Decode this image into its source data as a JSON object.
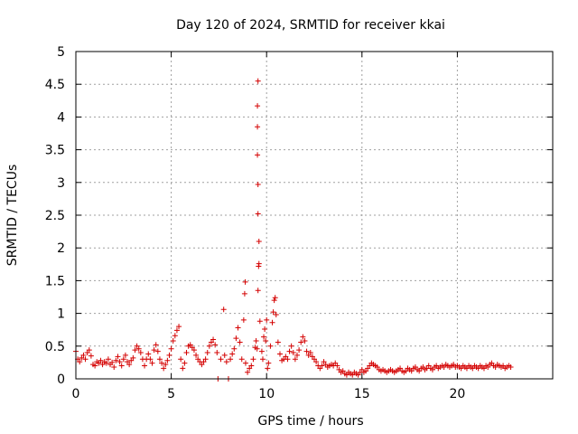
{
  "chart_data": {
    "type": "scatter",
    "title": "Day 120 of 2024, SRMTID for receiver kkai",
    "xlabel": "GPS time / hours",
    "ylabel": "SRMTID / TECUs",
    "xlim": [
      0,
      25
    ],
    "ylim": [
      0,
      5
    ],
    "xticks": [
      0,
      5,
      10,
      15,
      20
    ],
    "xtick_labels": [
      "0",
      "5",
      "10",
      "15",
      "20"
    ],
    "yticks": [
      0,
      0.5,
      1,
      1.5,
      2,
      2.5,
      3,
      3.5,
      4,
      4.5,
      5
    ],
    "ytick_labels": [
      "0",
      "0.5",
      "1",
      "1.5",
      "2",
      "2.5",
      "3",
      "3.5",
      "4",
      "4.5",
      "5"
    ],
    "grid": true,
    "marker": "plus",
    "color": "#d40000",
    "series": [
      {
        "name": "SRMTID",
        "points": [
          [
            0.0,
            0.42
          ],
          [
            0.1,
            0.3
          ],
          [
            0.2,
            0.26
          ],
          [
            0.3,
            0.32
          ],
          [
            0.4,
            0.36
          ],
          [
            0.5,
            0.3
          ],
          [
            0.6,
            0.4
          ],
          [
            0.7,
            0.44
          ],
          [
            0.8,
            0.35
          ],
          [
            0.9,
            0.22
          ],
          [
            1.0,
            0.2
          ],
          [
            1.1,
            0.26
          ],
          [
            1.2,
            0.24
          ],
          [
            1.3,
            0.28
          ],
          [
            1.4,
            0.22
          ],
          [
            1.5,
            0.26
          ],
          [
            1.6,
            0.24
          ],
          [
            1.7,
            0.3
          ],
          [
            1.8,
            0.22
          ],
          [
            1.9,
            0.25
          ],
          [
            2.0,
            0.18
          ],
          [
            2.1,
            0.28
          ],
          [
            2.2,
            0.34
          ],
          [
            2.3,
            0.26
          ],
          [
            2.4,
            0.2
          ],
          [
            2.5,
            0.3
          ],
          [
            2.6,
            0.36
          ],
          [
            2.7,
            0.26
          ],
          [
            2.8,
            0.22
          ],
          [
            2.9,
            0.28
          ],
          [
            3.0,
            0.32
          ],
          [
            3.1,
            0.44
          ],
          [
            3.2,
            0.5
          ],
          [
            3.3,
            0.46
          ],
          [
            3.4,
            0.4
          ],
          [
            3.5,
            0.3
          ],
          [
            3.6,
            0.2
          ],
          [
            3.7,
            0.3
          ],
          [
            3.8,
            0.38
          ],
          [
            3.9,
            0.3
          ],
          [
            4.0,
            0.24
          ],
          [
            4.1,
            0.44
          ],
          [
            4.2,
            0.52
          ],
          [
            4.3,
            0.42
          ],
          [
            4.4,
            0.3
          ],
          [
            4.5,
            0.24
          ],
          [
            4.6,
            0.16
          ],
          [
            4.7,
            0.22
          ],
          [
            4.8,
            0.28
          ],
          [
            4.9,
            0.36
          ],
          [
            5.0,
            0.46
          ],
          [
            5.1,
            0.58
          ],
          [
            5.2,
            0.66
          ],
          [
            5.3,
            0.74
          ],
          [
            5.4,
            0.8
          ],
          [
            5.5,
            0.3
          ],
          [
            5.6,
            0.16
          ],
          [
            5.7,
            0.24
          ],
          [
            5.8,
            0.4
          ],
          [
            5.9,
            0.5
          ],
          [
            6.0,
            0.52
          ],
          [
            6.1,
            0.48
          ],
          [
            6.2,
            0.44
          ],
          [
            6.3,
            0.36
          ],
          [
            6.4,
            0.3
          ],
          [
            6.5,
            0.26
          ],
          [
            6.6,
            0.22
          ],
          [
            6.7,
            0.26
          ],
          [
            6.8,
            0.3
          ],
          [
            6.9,
            0.4
          ],
          [
            7.0,
            0.5
          ],
          [
            7.1,
            0.56
          ],
          [
            7.2,
            0.6
          ],
          [
            7.3,
            0.52
          ],
          [
            7.4,
            0.4
          ],
          [
            7.45,
            0.0
          ],
          [
            7.6,
            0.3
          ],
          [
            7.75,
            1.06
          ],
          [
            7.8,
            0.36
          ],
          [
            7.9,
            0.26
          ],
          [
            8.0,
            0.0
          ],
          [
            8.1,
            0.3
          ],
          [
            8.2,
            0.38
          ],
          [
            8.3,
            0.46
          ],
          [
            8.4,
            0.62
          ],
          [
            8.5,
            0.78
          ],
          [
            8.6,
            0.56
          ],
          [
            8.7,
            0.3
          ],
          [
            8.8,
            0.9
          ],
          [
            8.85,
            1.3
          ],
          [
            8.88,
            1.48
          ],
          [
            8.9,
            0.24
          ],
          [
            9.0,
            0.1
          ],
          [
            9.1,
            0.16
          ],
          [
            9.2,
            0.2
          ],
          [
            9.3,
            0.3
          ],
          [
            9.4,
            0.48
          ],
          [
            9.45,
            0.58
          ],
          [
            9.5,
            0.46
          ],
          [
            9.55,
            1.35
          ],
          [
            9.58,
            1.72
          ],
          [
            9.6,
            1.76
          ],
          [
            9.6,
            2.1
          ],
          [
            9.55,
            2.52
          ],
          [
            9.55,
            2.97
          ],
          [
            9.52,
            3.42
          ],
          [
            9.52,
            3.85
          ],
          [
            9.52,
            4.17
          ],
          [
            9.55,
            4.55
          ],
          [
            9.65,
            0.88
          ],
          [
            9.75,
            0.42
          ],
          [
            9.8,
            0.3
          ],
          [
            9.85,
            0.64
          ],
          [
            9.9,
            0.76
          ],
          [
            9.95,
            0.58
          ],
          [
            10.0,
            0.9
          ],
          [
            10.05,
            0.16
          ],
          [
            10.1,
            0.24
          ],
          [
            10.2,
            0.5
          ],
          [
            10.3,
            0.86
          ],
          [
            10.35,
            1.02
          ],
          [
            10.4,
            1.2
          ],
          [
            10.45,
            1.24
          ],
          [
            10.5,
            0.98
          ],
          [
            10.6,
            0.56
          ],
          [
            10.7,
            0.38
          ],
          [
            10.8,
            0.28
          ],
          [
            10.9,
            0.3
          ],
          [
            11.0,
            0.34
          ],
          [
            11.1,
            0.3
          ],
          [
            11.2,
            0.42
          ],
          [
            11.3,
            0.5
          ],
          [
            11.4,
            0.4
          ],
          [
            11.5,
            0.3
          ],
          [
            11.6,
            0.36
          ],
          [
            11.7,
            0.44
          ],
          [
            11.8,
            0.56
          ],
          [
            11.9,
            0.64
          ],
          [
            12.0,
            0.58
          ],
          [
            12.1,
            0.42
          ],
          [
            12.2,
            0.36
          ],
          [
            12.3,
            0.4
          ],
          [
            12.4,
            0.34
          ],
          [
            12.5,
            0.3
          ],
          [
            12.6,
            0.26
          ],
          [
            12.7,
            0.2
          ],
          [
            12.8,
            0.16
          ],
          [
            12.9,
            0.2
          ],
          [
            13.0,
            0.26
          ],
          [
            13.1,
            0.22
          ],
          [
            13.2,
            0.18
          ],
          [
            13.3,
            0.2
          ],
          [
            13.4,
            0.22
          ],
          [
            13.5,
            0.2
          ],
          [
            13.6,
            0.24
          ],
          [
            13.7,
            0.2
          ],
          [
            13.8,
            0.14
          ],
          [
            13.9,
            0.1
          ],
          [
            14.0,
            0.12
          ],
          [
            14.1,
            0.08
          ],
          [
            14.2,
            0.06
          ],
          [
            14.3,
            0.1
          ],
          [
            14.4,
            0.08
          ],
          [
            14.5,
            0.06
          ],
          [
            14.6,
            0.1
          ],
          [
            14.7,
            0.08
          ],
          [
            14.8,
            0.06
          ],
          [
            14.9,
            0.1
          ],
          [
            15.0,
            0.14
          ],
          [
            15.1,
            0.1
          ],
          [
            15.2,
            0.12
          ],
          [
            15.3,
            0.16
          ],
          [
            15.4,
            0.2
          ],
          [
            15.5,
            0.24
          ],
          [
            15.6,
            0.22
          ],
          [
            15.7,
            0.2
          ],
          [
            15.8,
            0.18
          ],
          [
            15.9,
            0.14
          ],
          [
            16.0,
            0.12
          ],
          [
            16.1,
            0.14
          ],
          [
            16.2,
            0.12
          ],
          [
            16.3,
            0.1
          ],
          [
            16.4,
            0.12
          ],
          [
            16.5,
            0.14
          ],
          [
            16.6,
            0.12
          ],
          [
            16.7,
            0.1
          ],
          [
            16.8,
            0.12
          ],
          [
            16.9,
            0.14
          ],
          [
            17.0,
            0.16
          ],
          [
            17.1,
            0.12
          ],
          [
            17.2,
            0.1
          ],
          [
            17.3,
            0.12
          ],
          [
            17.4,
            0.16
          ],
          [
            17.5,
            0.14
          ],
          [
            17.6,
            0.12
          ],
          [
            17.7,
            0.16
          ],
          [
            17.8,
            0.18
          ],
          [
            17.9,
            0.14
          ],
          [
            18.0,
            0.12
          ],
          [
            18.1,
            0.16
          ],
          [
            18.2,
            0.18
          ],
          [
            18.3,
            0.14
          ],
          [
            18.4,
            0.16
          ],
          [
            18.5,
            0.2
          ],
          [
            18.6,
            0.16
          ],
          [
            18.7,
            0.14
          ],
          [
            18.8,
            0.18
          ],
          [
            18.9,
            0.2
          ],
          [
            19.0,
            0.16
          ],
          [
            19.1,
            0.18
          ],
          [
            19.2,
            0.2
          ],
          [
            19.3,
            0.18
          ],
          [
            19.4,
            0.22
          ],
          [
            19.5,
            0.2
          ],
          [
            19.6,
            0.18
          ],
          [
            19.7,
            0.2
          ],
          [
            19.8,
            0.22
          ],
          [
            19.9,
            0.18
          ],
          [
            20.0,
            0.2
          ],
          [
            20.1,
            0.18
          ],
          [
            20.2,
            0.16
          ],
          [
            20.3,
            0.2
          ],
          [
            20.4,
            0.18
          ],
          [
            20.5,
            0.16
          ],
          [
            20.6,
            0.2
          ],
          [
            20.7,
            0.18
          ],
          [
            20.8,
            0.16
          ],
          [
            20.9,
            0.2
          ],
          [
            21.0,
            0.18
          ],
          [
            21.1,
            0.16
          ],
          [
            21.2,
            0.2
          ],
          [
            21.3,
            0.18
          ],
          [
            21.4,
            0.16
          ],
          [
            21.5,
            0.2
          ],
          [
            21.6,
            0.18
          ],
          [
            21.7,
            0.22
          ],
          [
            21.8,
            0.24
          ],
          [
            21.9,
            0.2
          ],
          [
            22.0,
            0.18
          ],
          [
            22.1,
            0.22
          ],
          [
            22.2,
            0.2
          ],
          [
            22.3,
            0.18
          ],
          [
            22.4,
            0.2
          ],
          [
            22.5,
            0.16
          ],
          [
            22.6,
            0.18
          ],
          [
            22.7,
            0.2
          ],
          [
            22.8,
            0.18
          ]
        ]
      }
    ]
  }
}
